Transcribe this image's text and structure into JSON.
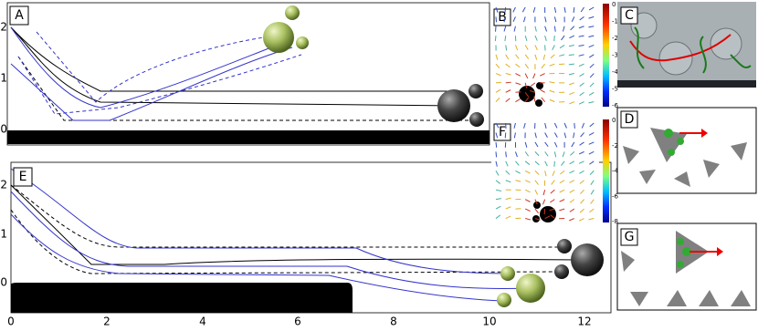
{
  "panels": {
    "a": "A",
    "b": "B",
    "c": "C",
    "d": "D",
    "e": "E",
    "f": "F",
    "g": "G"
  },
  "axis_a": {
    "yticks": [
      0,
      1,
      2
    ]
  },
  "axis_e": {
    "yticks": [
      0,
      1,
      2
    ],
    "xticks": [
      0,
      2,
      4,
      6,
      8,
      10,
      12
    ]
  },
  "colorbar_b": {
    "ticks": [
      0,
      -1,
      -2,
      -3,
      -4,
      -5,
      -6
    ]
  },
  "colorbar_f": {
    "ticks": [
      0,
      -2,
      -4,
      -6,
      -8
    ]
  }
}
